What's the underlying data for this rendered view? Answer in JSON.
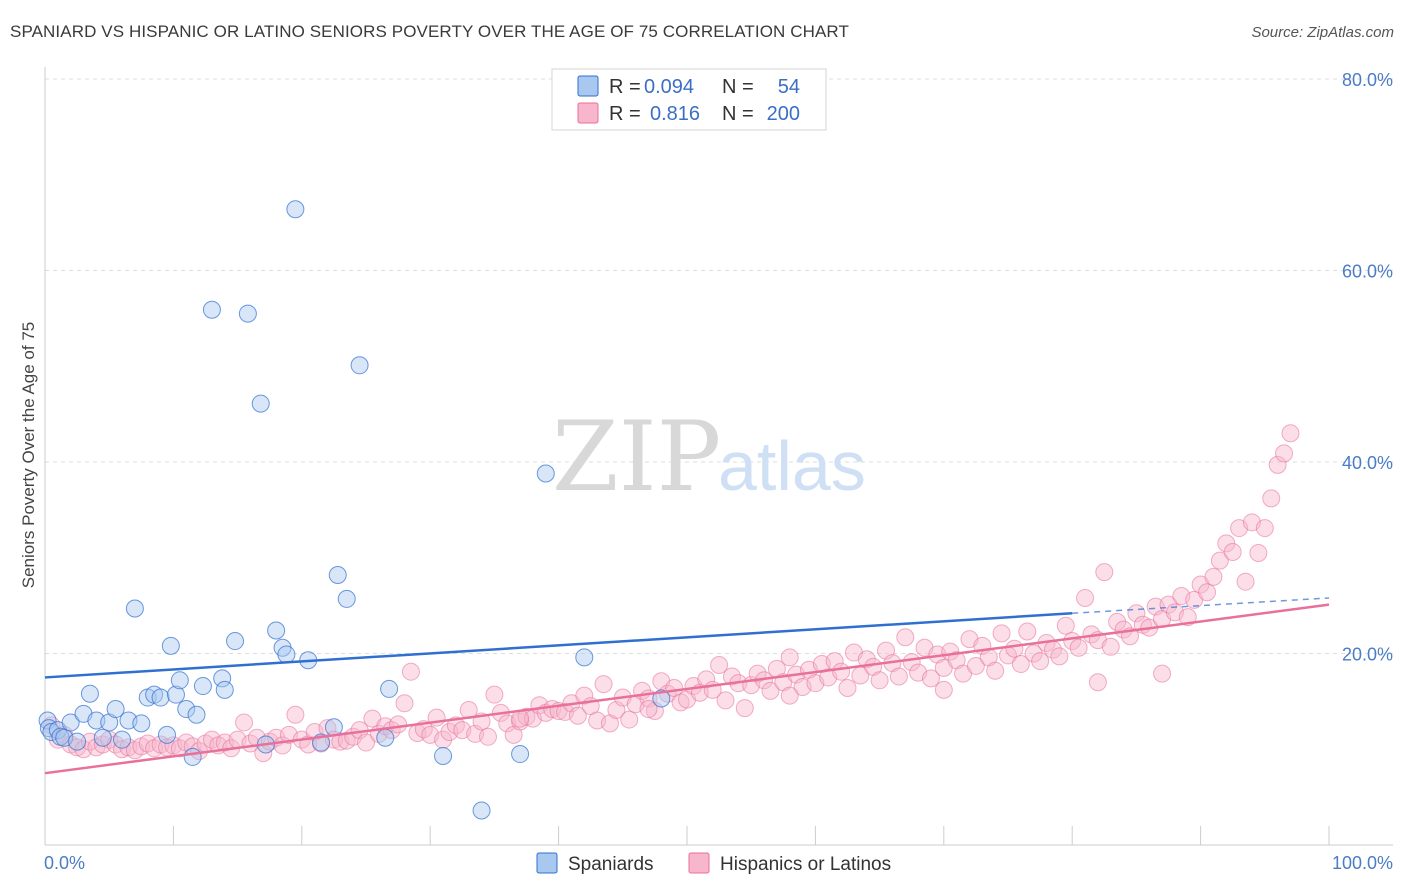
{
  "title": "SPANIARD VS HISPANIC OR LATINO SENIORS POVERTY OVER THE AGE OF 75 CORRELATION CHART",
  "source": "Source: ZipAtlas.com",
  "watermark": {
    "zip": "ZIP",
    "atlas": "atlas"
  },
  "legend": {
    "rows": [
      {
        "r_label": "R =",
        "r_value": "0.094",
        "n_label": "N =",
        "n_value": "54",
        "color": "#a8c8f0"
      },
      {
        "r_label": "R =",
        "r_value": "0.816",
        "n_label": "N =",
        "n_value": "200",
        "color": "#f7b6cb"
      }
    ]
  },
  "bottom_legend": [
    {
      "label": "Spaniards",
      "color": "#a8c8f0"
    },
    {
      "label": "Hispanics or Latinos",
      "color": "#f7b6cb"
    }
  ],
  "chart_data": {
    "type": "scatter",
    "title": "SPANIARD VS HISPANIC OR LATINO SENIORS POVERTY OVER THE AGE OF 75 CORRELATION CHART",
    "xlabel": "",
    "ylabel": "Seniors Poverty Over the Age of 75",
    "xlim": [
      0,
      100
    ],
    "ylim": [
      0,
      80
    ],
    "x_tick_labels": [
      "0.0%",
      "100.0%"
    ],
    "y_ticks": [
      20,
      40,
      60,
      80
    ],
    "y_tick_labels": [
      "20.0%",
      "40.0%",
      "60.0%",
      "80.0%"
    ],
    "grid": true,
    "colors": {
      "spaniards": "#2f6fd1",
      "hispanics": "#e8709a",
      "spaniards_fill": "#a8c8f0",
      "hispanics_fill": "#f7b6cb"
    },
    "series": [
      {
        "name": "Spaniards",
        "trend": {
          "x": [
            0,
            80
          ],
          "y": [
            17.5,
            24.2
          ],
          "extension_x": [
            80,
            100
          ],
          "extension_y": [
            24.2,
            25.8
          ]
        },
        "points": [
          [
            0.2,
            13.0
          ],
          [
            0.3,
            12.2
          ],
          [
            0.5,
            11.8
          ],
          [
            1.0,
            12.0
          ],
          [
            1.2,
            11.3
          ],
          [
            1.5,
            11.2
          ],
          [
            2.0,
            12.8
          ],
          [
            2.5,
            10.8
          ],
          [
            3.0,
            13.7
          ],
          [
            3.5,
            15.8
          ],
          [
            4.0,
            13.0
          ],
          [
            4.5,
            11.2
          ],
          [
            5.0,
            12.8
          ],
          [
            5.5,
            14.2
          ],
          [
            6.0,
            11.0
          ],
          [
            6.5,
            13.0
          ],
          [
            7.0,
            24.7
          ],
          [
            7.5,
            12.7
          ],
          [
            8.0,
            15.4
          ],
          [
            8.5,
            15.7
          ],
          [
            9.0,
            15.4
          ],
          [
            9.5,
            11.5
          ],
          [
            9.8,
            20.8
          ],
          [
            10.2,
            15.7
          ],
          [
            10.5,
            17.2
          ],
          [
            11.0,
            14.2
          ],
          [
            11.5,
            9.2
          ],
          [
            11.8,
            13.6
          ],
          [
            12.3,
            16.6
          ],
          [
            13.0,
            55.9
          ],
          [
            13.8,
            17.4
          ],
          [
            14.0,
            16.2
          ],
          [
            14.8,
            21.3
          ],
          [
            15.8,
            55.5
          ],
          [
            16.8,
            46.1
          ],
          [
            17.2,
            10.5
          ],
          [
            18.0,
            22.4
          ],
          [
            18.5,
            20.6
          ],
          [
            18.8,
            19.9
          ],
          [
            19.5,
            66.4
          ],
          [
            20.5,
            19.3
          ],
          [
            21.5,
            10.7
          ],
          [
            22.5,
            12.3
          ],
          [
            22.8,
            28.2
          ],
          [
            23.5,
            25.7
          ],
          [
            24.5,
            50.1
          ],
          [
            26.8,
            16.3
          ],
          [
            26.5,
            11.2
          ],
          [
            31.0,
            9.3
          ],
          [
            34.0,
            3.6
          ],
          [
            37.0,
            9.5
          ],
          [
            39.0,
            38.8
          ],
          [
            42.0,
            19.6
          ],
          [
            48.0,
            15.3
          ]
        ]
      },
      {
        "name": "Hispanics or Latinos",
        "trend": {
          "x": [
            0,
            100
          ],
          "y": [
            7.5,
            25.1
          ]
        },
        "points": [
          [
            0.5,
            12.5
          ],
          [
            1.0,
            11.0
          ],
          [
            1.5,
            11.5
          ],
          [
            2.0,
            10.5
          ],
          [
            2.5,
            10.2
          ],
          [
            3.0,
            10.0
          ],
          [
            3.5,
            10.8
          ],
          [
            4.0,
            10.2
          ],
          [
            4.5,
            10.5
          ],
          [
            5.0,
            11.0
          ],
          [
            5.5,
            10.5
          ],
          [
            6.0,
            10.0
          ],
          [
            6.5,
            10.2
          ],
          [
            7.0,
            9.9
          ],
          [
            7.5,
            10.3
          ],
          [
            8.0,
            10.6
          ],
          [
            8.5,
            10.1
          ],
          [
            9.0,
            10.5
          ],
          [
            9.5,
            10.2
          ],
          [
            10.0,
            10.4
          ],
          [
            10.5,
            10.1
          ],
          [
            11.0,
            10.7
          ],
          [
            11.5,
            10.3
          ],
          [
            12.0,
            9.8
          ],
          [
            12.5,
            10.6
          ],
          [
            13.0,
            11.0
          ],
          [
            13.5,
            10.4
          ],
          [
            14.0,
            10.7
          ],
          [
            14.5,
            10.1
          ],
          [
            15.0,
            11.0
          ],
          [
            15.5,
            12.8
          ],
          [
            16.0,
            10.6
          ],
          [
            16.5,
            11.2
          ],
          [
            17.0,
            9.6
          ],
          [
            17.5,
            10.8
          ],
          [
            18.0,
            11.2
          ],
          [
            18.5,
            10.4
          ],
          [
            19.0,
            11.5
          ],
          [
            19.5,
            13.6
          ],
          [
            20.0,
            11.0
          ],
          [
            20.5,
            10.5
          ],
          [
            21.0,
            11.8
          ],
          [
            21.5,
            10.6
          ],
          [
            22.0,
            12.2
          ],
          [
            22.5,
            11.0
          ],
          [
            23.0,
            10.8
          ],
          [
            23.5,
            10.9
          ],
          [
            24.0,
            11.3
          ],
          [
            24.5,
            12.0
          ],
          [
            25.0,
            10.7
          ],
          [
            25.5,
            13.2
          ],
          [
            26.0,
            11.6
          ],
          [
            26.5,
            12.4
          ],
          [
            27.0,
            12.0
          ],
          [
            27.5,
            12.6
          ],
          [
            28.0,
            14.8
          ],
          [
            28.5,
            18.1
          ],
          [
            29.0,
            11.7
          ],
          [
            29.5,
            12.1
          ],
          [
            30.0,
            11.5
          ],
          [
            30.5,
            13.3
          ],
          [
            31.0,
            11.0
          ],
          [
            31.5,
            11.8
          ],
          [
            32.0,
            12.5
          ],
          [
            32.5,
            12.0
          ],
          [
            33.0,
            14.1
          ],
          [
            33.5,
            11.6
          ],
          [
            34.0,
            12.9
          ],
          [
            34.5,
            11.3
          ],
          [
            35.0,
            15.7
          ],
          [
            35.5,
            13.8
          ],
          [
            36.0,
            12.7
          ],
          [
            36.5,
            11.5
          ],
          [
            37.0,
            12.9
          ],
          [
            37.5,
            13.4
          ],
          [
            38.0,
            13.2
          ],
          [
            38.5,
            14.6
          ],
          [
            39.0,
            13.8
          ],
          [
            39.5,
            14.2
          ],
          [
            40.0,
            14.0
          ],
          [
            40.5,
            13.9
          ],
          [
            41.0,
            14.8
          ],
          [
            41.5,
            13.5
          ],
          [
            42.0,
            15.6
          ],
          [
            42.5,
            14.5
          ],
          [
            43.0,
            13.0
          ],
          [
            43.5,
            16.8
          ],
          [
            44.0,
            12.7
          ],
          [
            44.5,
            14.1
          ],
          [
            45.0,
            15.4
          ],
          [
            45.5,
            13.1
          ],
          [
            46.0,
            14.7
          ],
          [
            46.5,
            16.1
          ],
          [
            47.0,
            15.3
          ],
          [
            47.5,
            14.0
          ],
          [
            48.0,
            17.1
          ],
          [
            48.5,
            15.8
          ],
          [
            49.0,
            16.4
          ],
          [
            49.5,
            14.9
          ],
          [
            50.0,
            15.2
          ],
          [
            50.5,
            16.6
          ],
          [
            51.0,
            15.9
          ],
          [
            51.5,
            17.3
          ],
          [
            52.0,
            16.2
          ],
          [
            52.5,
            18.8
          ],
          [
            53.0,
            15.1
          ],
          [
            53.5,
            17.6
          ],
          [
            54.0,
            16.9
          ],
          [
            54.5,
            14.3
          ],
          [
            55.0,
            16.7
          ],
          [
            55.5,
            17.9
          ],
          [
            56.0,
            17.2
          ],
          [
            56.5,
            16.1
          ],
          [
            57.0,
            18.4
          ],
          [
            57.5,
            17.0
          ],
          [
            58.0,
            19.6
          ],
          [
            58.5,
            17.8
          ],
          [
            59.0,
            16.5
          ],
          [
            59.5,
            18.3
          ],
          [
            60.0,
            16.9
          ],
          [
            60.5,
            18.9
          ],
          [
            61.0,
            17.5
          ],
          [
            61.5,
            19.2
          ],
          [
            62.0,
            18.1
          ],
          [
            62.5,
            16.4
          ],
          [
            63.0,
            20.1
          ],
          [
            63.5,
            17.7
          ],
          [
            64.0,
            19.4
          ],
          [
            64.5,
            18.6
          ],
          [
            65.0,
            17.2
          ],
          [
            65.5,
            20.3
          ],
          [
            66.0,
            19.0
          ],
          [
            66.5,
            17.6
          ],
          [
            67.0,
            21.7
          ],
          [
            67.5,
            19.1
          ],
          [
            68.0,
            18.0
          ],
          [
            68.5,
            20.6
          ],
          [
            69.0,
            17.4
          ],
          [
            69.5,
            19.9
          ],
          [
            70.0,
            18.5
          ],
          [
            70.5,
            20.2
          ],
          [
            71.0,
            19.3
          ],
          [
            71.5,
            17.9
          ],
          [
            72.0,
            21.5
          ],
          [
            72.5,
            18.7
          ],
          [
            73.0,
            20.8
          ],
          [
            73.5,
            19.6
          ],
          [
            74.0,
            18.2
          ],
          [
            74.5,
            22.1
          ],
          [
            75.0,
            19.8
          ],
          [
            75.5,
            20.5
          ],
          [
            76.0,
            18.9
          ],
          [
            76.5,
            22.3
          ],
          [
            77.0,
            20.0
          ],
          [
            77.5,
            19.2
          ],
          [
            78.0,
            21.1
          ],
          [
            78.5,
            20.4
          ],
          [
            79.0,
            19.7
          ],
          [
            79.5,
            22.9
          ],
          [
            80.0,
            21.3
          ],
          [
            80.5,
            20.6
          ],
          [
            81.0,
            25.8
          ],
          [
            81.5,
            22.0
          ],
          [
            82.0,
            21.4
          ],
          [
            82.5,
            28.5
          ],
          [
            83.0,
            20.7
          ],
          [
            83.5,
            23.3
          ],
          [
            84.0,
            22.5
          ],
          [
            84.5,
            21.8
          ],
          [
            85.0,
            24.2
          ],
          [
            85.5,
            23.0
          ],
          [
            86.0,
            22.7
          ],
          [
            86.5,
            24.9
          ],
          [
            87.0,
            23.6
          ],
          [
            87.5,
            25.1
          ],
          [
            88.0,
            24.3
          ],
          [
            88.5,
            26.0
          ],
          [
            89.0,
            23.8
          ],
          [
            89.5,
            25.6
          ],
          [
            90.0,
            27.2
          ],
          [
            90.5,
            26.4
          ],
          [
            91.0,
            28.0
          ],
          [
            91.5,
            29.7
          ],
          [
            92.0,
            31.5
          ],
          [
            92.5,
            30.6
          ],
          [
            93.0,
            33.1
          ],
          [
            93.5,
            27.5
          ],
          [
            94.0,
            33.7
          ],
          [
            94.5,
            30.5
          ],
          [
            95.0,
            33.1
          ],
          [
            95.5,
            36.2
          ],
          [
            96.0,
            39.7
          ],
          [
            96.5,
            40.9
          ],
          [
            97.0,
            43.0
          ],
          [
            37.0,
            13.2
          ],
          [
            47.0,
            14.2
          ],
          [
            58.0,
            15.6
          ],
          [
            70.0,
            16.2
          ],
          [
            82.0,
            17.0
          ],
          [
            87.0,
            17.9
          ]
        ]
      }
    ]
  }
}
